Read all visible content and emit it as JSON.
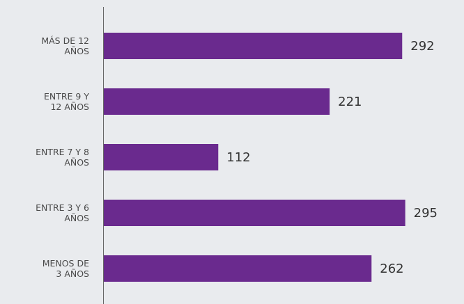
{
  "chart_data": {
    "type": "barh",
    "categories": [
      "MÁS DE 12\nAÑOS",
      "ENTRE 9 Y\n12 AÑOS",
      "ENTRE 7 Y 8\nAÑOS",
      "ENTRE 3 Y 6\nAÑOS",
      "MENOS DE\n3 AÑOS"
    ],
    "values": [
      292,
      221,
      112,
      295,
      262
    ],
    "color": "#6a2a8e",
    "xlim": [
      0,
      300
    ]
  }
}
